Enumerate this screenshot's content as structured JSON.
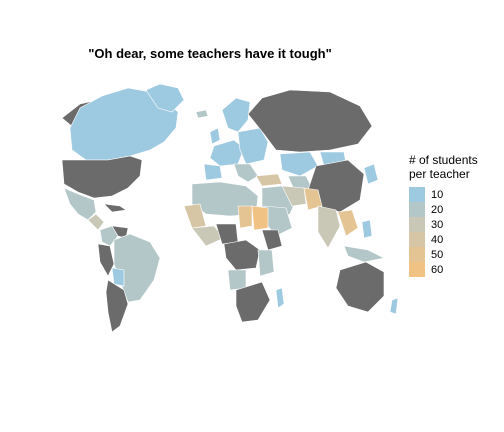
{
  "title": "\"Oh dear, some teachers have it tough\"",
  "legend": {
    "title_line1": "# of students",
    "title_line2": "per teacher",
    "items": [
      {
        "label": "10",
        "color": "#9ecae1"
      },
      {
        "label": "20",
        "color": "#b4c7c8"
      },
      {
        "label": "30",
        "color": "#c9c7b5"
      },
      {
        "label": "40",
        "color": "#d7c6a6"
      },
      {
        "label": "50",
        "color": "#e5c494"
      },
      {
        "label": "60",
        "color": "#f0c283"
      }
    ]
  },
  "colors": {
    "no_data": "#6b6b6b",
    "border": "#ffffff",
    "background": "#ffffff"
  }
}
